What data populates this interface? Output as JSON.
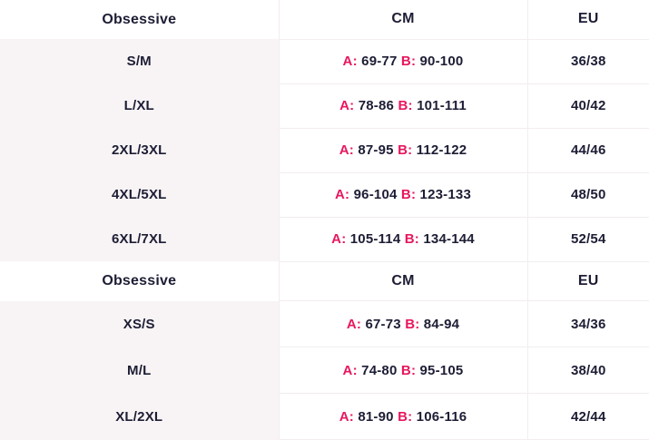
{
  "theme": {
    "text_color": "#1d1d35",
    "accent_pink": "#e8175d",
    "first_column_bg": "#f8f4f5",
    "divider_line": "#f3edef",
    "background": "#ffffff"
  },
  "labels": {
    "a_prefix": "A:",
    "b_prefix": "B:"
  },
  "tables": [
    {
      "headers": {
        "brand": "Obsessive",
        "cm": "CM",
        "eu": "EU"
      },
      "rows": [
        {
          "size": "S/M",
          "a": "69-77",
          "b": "90-100",
          "eu": "36/38"
        },
        {
          "size": "L/XL",
          "a": "78-86",
          "b": "101-111",
          "eu": "40/42"
        },
        {
          "size": "2XL/3XL",
          "a": "87-95",
          "b": "112-122",
          "eu": "44/46"
        },
        {
          "size": "4XL/5XL",
          "a": "96-104",
          "b": "123-133",
          "eu": "48/50"
        },
        {
          "size": "6XL/7XL",
          "a": "105-114",
          "b": "134-144",
          "eu": "52/54"
        }
      ]
    },
    {
      "headers": {
        "brand": "Obsessive",
        "cm": "CM",
        "eu": "EU"
      },
      "rows": [
        {
          "size": "XS/S",
          "a": "67-73",
          "b": "84-94",
          "eu": "34/36"
        },
        {
          "size": "M/L",
          "a": "74-80",
          "b": "95-105",
          "eu": "38/40"
        },
        {
          "size": "XL/2XL",
          "a": "81-90",
          "b": "106-116",
          "eu": "42/44"
        }
      ]
    }
  ]
}
